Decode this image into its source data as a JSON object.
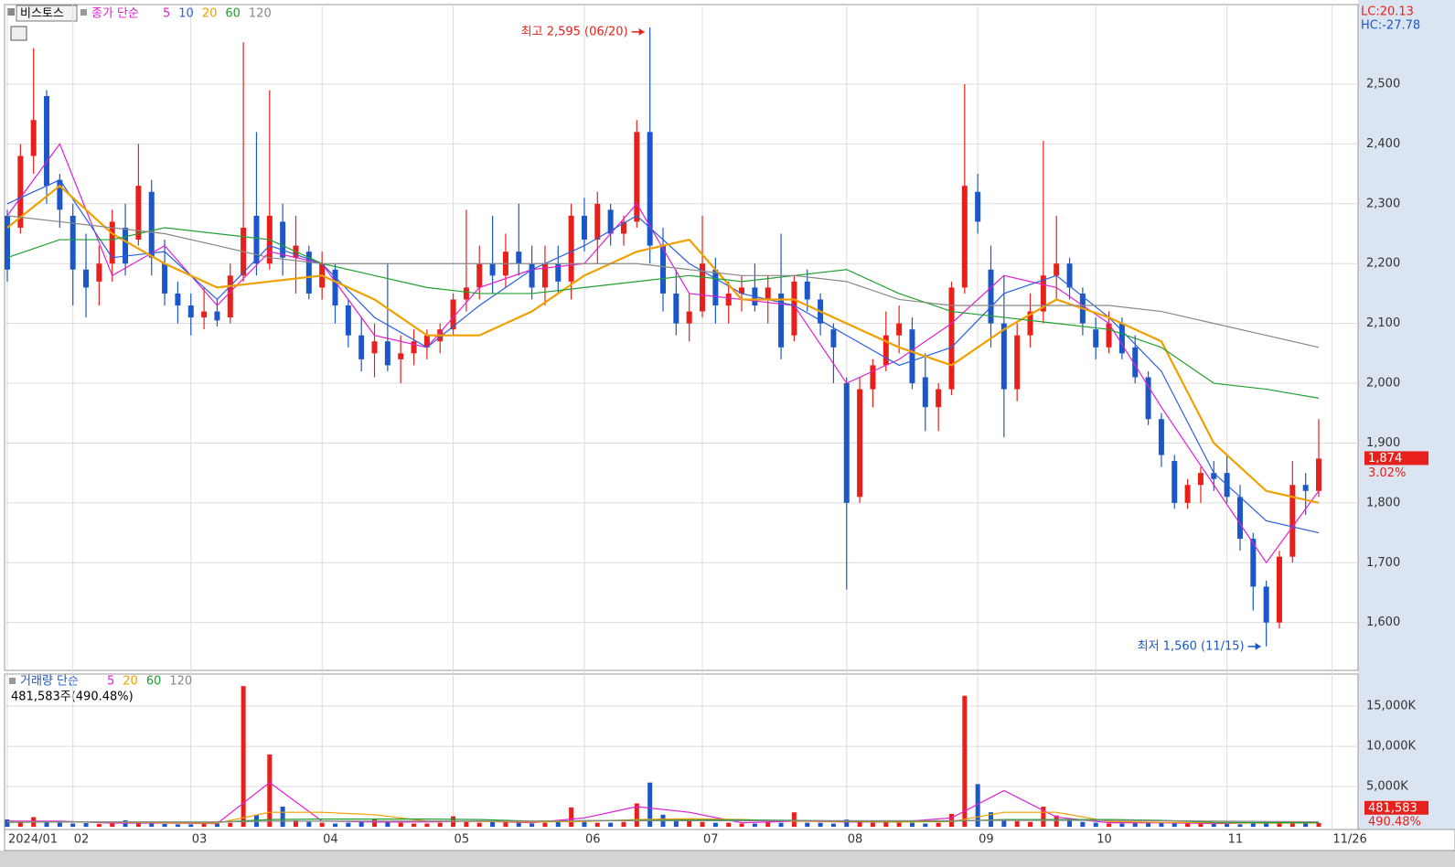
{
  "chart_data": {
    "type": "candlestick",
    "title": "비스토스",
    "price_legend": "종가 단순",
    "lc": "LC:20.13",
    "hc": "HC:-27.78",
    "categories": [
      "2024/01",
      null,
      null,
      null,
      null,
      "02",
      null,
      null,
      null,
      null,
      null,
      null,
      null,
      null,
      "03",
      null,
      null,
      null,
      null,
      null,
      null,
      null,
      null,
      null,
      "04",
      null,
      null,
      null,
      null,
      null,
      null,
      null,
      null,
      null,
      "05",
      null,
      null,
      null,
      null,
      null,
      null,
      null,
      null,
      null,
      "06",
      null,
      null,
      null,
      null,
      null,
      null,
      null,
      null,
      "07",
      null,
      null,
      null,
      null,
      null,
      null,
      null,
      null,
      null,
      null,
      "08",
      null,
      null,
      null,
      null,
      null,
      null,
      null,
      null,
      null,
      "09",
      null,
      null,
      null,
      null,
      null,
      null,
      null,
      null,
      "10",
      null,
      null,
      null,
      null,
      null,
      null,
      null,
      null,
      null,
      "11",
      null,
      null,
      null,
      null,
      null,
      null,
      null,
      "11/26"
    ],
    "candles": [
      [
        2280,
        2290,
        2170,
        2190
      ],
      [
        2260,
        2400,
        2250,
        2380
      ],
      [
        2380,
        2560,
        2350,
        2440
      ],
      [
        2480,
        2490,
        2300,
        2330
      ],
      [
        2340,
        2350,
        2260,
        2290
      ],
      [
        2280,
        2300,
        2130,
        2190
      ],
      [
        2190,
        2250,
        2110,
        2160
      ],
      [
        2170,
        2230,
        2130,
        2200
      ],
      [
        2200,
        2290,
        2170,
        2270
      ],
      [
        2260,
        2300,
        2180,
        2200
      ],
      [
        2240,
        2400,
        2230,
        2330
      ],
      [
        2320,
        2340,
        2180,
        2210
      ],
      [
        2200,
        2240,
        2130,
        2150
      ],
      [
        2150,
        2170,
        2100,
        2130
      ],
      [
        2130,
        2150,
        2080,
        2110
      ],
      [
        2110,
        2160,
        2090,
        2120
      ],
      [
        2120,
        2140,
        2095,
        2105
      ],
      [
        2110,
        2200,
        2100,
        2180
      ],
      [
        2180,
        2570,
        2170,
        2260
      ],
      [
        2280,
        2420,
        2180,
        2200
      ],
      [
        2200,
        2490,
        2190,
        2280
      ],
      [
        2270,
        2300,
        2180,
        2210
      ],
      [
        2210,
        2280,
        2150,
        2230
      ],
      [
        2220,
        2230,
        2140,
        2150
      ],
      [
        2160,
        2220,
        2140,
        2200
      ],
      [
        2190,
        2200,
        2100,
        2130
      ],
      [
        2130,
        2140,
        2060,
        2080
      ],
      [
        2080,
        2110,
        2020,
        2040
      ],
      [
        2050,
        2100,
        2010,
        2070
      ],
      [
        2070,
        2200,
        2020,
        2030
      ],
      [
        2040,
        2080,
        2000,
        2050
      ],
      [
        2050,
        2090,
        2030,
        2070
      ],
      [
        2060,
        2090,
        2040,
        2080
      ],
      [
        2070,
        2100,
        2050,
        2090
      ],
      [
        2090,
        2150,
        2080,
        2140
      ],
      [
        2140,
        2290,
        2120,
        2160
      ],
      [
        2160,
        2230,
        2140,
        2200
      ],
      [
        2200,
        2280,
        2150,
        2180
      ],
      [
        2180,
        2250,
        2160,
        2220
      ],
      [
        2220,
        2300,
        2180,
        2200
      ],
      [
        2200,
        2230,
        2140,
        2160
      ],
      [
        2160,
        2230,
        2130,
        2200
      ],
      [
        2200,
        2230,
        2150,
        2170
      ],
      [
        2170,
        2300,
        2140,
        2280
      ],
      [
        2280,
        2310,
        2220,
        2240
      ],
      [
        2240,
        2320,
        2200,
        2300
      ],
      [
        2290,
        2300,
        2230,
        2250
      ],
      [
        2250,
        2280,
        2230,
        2270
      ],
      [
        2270,
        2440,
        2260,
        2420
      ],
      [
        2420,
        2595,
        2200,
        2230
      ],
      [
        2230,
        2260,
        2120,
        2150
      ],
      [
        2150,
        2190,
        2080,
        2100
      ],
      [
        2100,
        2150,
        2070,
        2120
      ],
      [
        2120,
        2280,
        2110,
        2200
      ],
      [
        2190,
        2210,
        2100,
        2130
      ],
      [
        2130,
        2170,
        2100,
        2150
      ],
      [
        2150,
        2180,
        2120,
        2160
      ],
      [
        2160,
        2200,
        2120,
        2130
      ],
      [
        2140,
        2180,
        2100,
        2160
      ],
      [
        2150,
        2250,
        2040,
        2060
      ],
      [
        2080,
        2180,
        2070,
        2170
      ],
      [
        2170,
        2190,
        2120,
        2140
      ],
      [
        2140,
        2150,
        2080,
        2100
      ],
      [
        2090,
        2100,
        2000,
        2060
      ],
      [
        2000,
        2010,
        1655,
        1800
      ],
      [
        1810,
        2010,
        1800,
        1990
      ],
      [
        1990,
        2040,
        1960,
        2030
      ],
      [
        2030,
        2120,
        2020,
        2080
      ],
      [
        2080,
        2130,
        2050,
        2100
      ],
      [
        2090,
        2110,
        1990,
        2000
      ],
      [
        2010,
        2050,
        1920,
        1960
      ],
      [
        1960,
        2000,
        1920,
        1990
      ],
      [
        1990,
        2170,
        1980,
        2160
      ],
      [
        2160,
        2500,
        2150,
        2330
      ],
      [
        2320,
        2350,
        2250,
        2270
      ],
      [
        2190,
        2230,
        2060,
        2100
      ],
      [
        2100,
        2180,
        1910,
        1990
      ],
      [
        1990,
        2100,
        1970,
        2080
      ],
      [
        2080,
        2150,
        2060,
        2120
      ],
      [
        2120,
        2405,
        2100,
        2180
      ],
      [
        2180,
        2280,
        2140,
        2200
      ],
      [
        2200,
        2210,
        2140,
        2160
      ],
      [
        2150,
        2160,
        2080,
        2100
      ],
      [
        2090,
        2110,
        2040,
        2060
      ],
      [
        2060,
        2120,
        2050,
        2100
      ],
      [
        2100,
        2110,
        2040,
        2050
      ],
      [
        2060,
        2080,
        2000,
        2010
      ],
      [
        2010,
        2020,
        1930,
        1940
      ],
      [
        1940,
        1950,
        1860,
        1880
      ],
      [
        1870,
        1880,
        1790,
        1800
      ],
      [
        1800,
        1840,
        1790,
        1830
      ],
      [
        1830,
        1860,
        1800,
        1850
      ],
      [
        1850,
        1870,
        1820,
        1840
      ],
      [
        1850,
        1880,
        1800,
        1810
      ],
      [
        1810,
        1830,
        1720,
        1740
      ],
      [
        1740,
        1750,
        1620,
        1660
      ],
      [
        1660,
        1670,
        1560,
        1600
      ],
      [
        1600,
        1720,
        1590,
        1710
      ],
      [
        1710,
        1870,
        1700,
        1830
      ],
      [
        1830,
        1850,
        1780,
        1820
      ],
      [
        1820,
        1940,
        1810,
        1874
      ]
    ],
    "up_color": "#e8201c",
    "down_color": "#1b57c8",
    "ylim": [
      1520,
      2633
    ],
    "yticks": [
      {
        "value": 1600,
        "label": "1,600"
      },
      {
        "value": 1700,
        "label": "1,700"
      },
      {
        "value": 1800,
        "label": "1,800"
      },
      {
        "value": 1900,
        "label": "1,900"
      },
      {
        "value": 2000,
        "label": "2,000"
      },
      {
        "value": 2100,
        "label": "2,100"
      },
      {
        "value": 2200,
        "label": "2,200"
      },
      {
        "value": 2300,
        "label": "2,300"
      },
      {
        "value": 2400,
        "label": "2,400"
      },
      {
        "value": 2500,
        "label": "2,500"
      }
    ],
    "ma_x": [
      0,
      4,
      8,
      12,
      16,
      20,
      24,
      28,
      32,
      36,
      40,
      44,
      48,
      52,
      56,
      60,
      64,
      68,
      72,
      76,
      80,
      84,
      88,
      92,
      96,
      100
    ],
    "ma_series": [
      {
        "name": "5",
        "color": "#e020d0",
        "values": [
          2280,
          2400,
          2180,
          2230,
          2130,
          2220,
          2200,
          2080,
          2060,
          2160,
          2190,
          2200,
          2300,
          2150,
          2140,
          2130,
          2000,
          2040,
          2100,
          2180,
          2160,
          2100,
          1960,
          1830,
          1700,
          1820
        ]
      },
      {
        "name": "10",
        "color": "#2a5fe0",
        "values": [
          2300,
          2340,
          2210,
          2220,
          2140,
          2230,
          2200,
          2110,
          2060,
          2130,
          2190,
          2230,
          2280,
          2200,
          2150,
          2130,
          2080,
          2030,
          2060,
          2150,
          2180,
          2110,
          2020,
          1850,
          1770,
          1750
        ]
      },
      {
        "name": "20",
        "color": "#f0a000",
        "values": [
          2260,
          2330,
          2250,
          2200,
          2160,
          2170,
          2180,
          2140,
          2080,
          2080,
          2120,
          2180,
          2220,
          2240,
          2140,
          2140,
          2100,
          2060,
          2030,
          2090,
          2140,
          2110,
          2070,
          1900,
          1820,
          1800
        ]
      },
      {
        "name": "60",
        "color": "#20a030",
        "values": [
          2210,
          2240,
          2240,
          2260,
          2250,
          2240,
          2200,
          2180,
          2160,
          2150,
          2150,
          2160,
          2170,
          2180,
          2170,
          2180,
          2190,
          2150,
          2120,
          2110,
          2100,
          2090,
          2060,
          2000,
          1990,
          1975
        ]
      },
      {
        "name": "120",
        "color": "#888888",
        "values": [
          2280,
          2270,
          2260,
          2250,
          2230,
          2210,
          2200,
          2200,
          2200,
          2200,
          2200,
          2200,
          2200,
          2190,
          2180,
          2180,
          2170,
          2140,
          2130,
          2130,
          2130,
          2130,
          2120,
          2100,
          2080,
          2060
        ]
      }
    ],
    "annotations": [
      "최고 2,595 (06/20)",
      "최저 1,560 (11/15)"
    ],
    "last_price": {
      "value": 1874,
      "label": "1,874"
    },
    "change": "3.02%",
    "volume": {
      "legend": "거래량 단순",
      "info": "481,583주(490.48%)",
      "values": [
        900,
        600,
        1200,
        700,
        500,
        400,
        450,
        350,
        400,
        800,
        500,
        400,
        350,
        300,
        300,
        350,
        400,
        500,
        17500,
        1500,
        9000,
        2500,
        800,
        600,
        500,
        400,
        500,
        600,
        1000,
        700,
        500,
        400,
        400,
        500,
        1300,
        600,
        500,
        700,
        600,
        500,
        400,
        500,
        600,
        2400,
        600,
        500,
        500,
        600,
        2900,
        5500,
        1500,
        800,
        700,
        600,
        500,
        500,
        400,
        400,
        600,
        500,
        1800,
        500,
        500,
        400,
        900,
        700,
        500,
        600,
        500,
        500,
        400,
        500,
        1600,
        16300,
        5300,
        1800,
        800,
        700,
        600,
        2500,
        1400,
        900,
        600,
        500,
        400,
        400,
        500,
        600,
        500,
        400,
        400,
        450,
        400,
        350,
        300,
        500,
        600,
        700,
        500,
        400,
        481.583
      ],
      "ylim": [
        0,
        19000
      ],
      "yticks": [
        {
          "value": 5000,
          "label": "5,000K"
        },
        {
          "value": 10000,
          "label": "10,000K"
        },
        {
          "value": 15000,
          "label": "15,000K"
        }
      ],
      "ma_series": [
        {
          "name": "5",
          "color": "#e020d0",
          "values": [
            700,
            700,
            450,
            450,
            400,
            5500,
            700,
            600,
            600,
            700,
            500,
            1100,
            2500,
            1800,
            500,
            700,
            600,
            600,
            1100,
            4500,
            1200,
            500,
            500,
            400,
            500,
            500
          ]
        },
        {
          "name": "20",
          "color": "#f0a000",
          "values": [
            600,
            600,
            550,
            500,
            450,
            1800,
            1800,
            1500,
            700,
            650,
            600,
            650,
            900,
            1000,
            900,
            700,
            650,
            600,
            650,
            1800,
            1800,
            650,
            550,
            500,
            450,
            480
          ]
        },
        {
          "name": "60",
          "color": "#20a030",
          "values": [
            550,
            600,
            600,
            580,
            560,
            900,
            950,
            950,
            950,
            900,
            700,
            750,
            800,
            850,
            850,
            800,
            700,
            700,
            700,
            900,
            900,
            900,
            800,
            550,
            500,
            500
          ]
        },
        {
          "name": "120",
          "color": "#888888",
          "values": [
            600,
            600,
            600,
            600,
            600,
            700,
            700,
            700,
            700,
            700,
            700,
            750,
            750,
            750,
            750,
            750,
            750,
            750,
            750,
            800,
            800,
            800,
            750,
            700,
            650,
            620
          ]
        }
      ],
      "last": {
        "value": 481.583,
        "label": "481,583"
      },
      "ratio": "490.48%"
    }
  }
}
